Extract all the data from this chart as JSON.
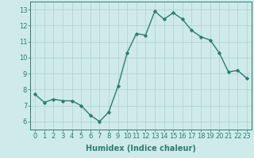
{
  "x": [
    0,
    1,
    2,
    3,
    4,
    5,
    6,
    7,
    8,
    9,
    10,
    11,
    12,
    13,
    14,
    15,
    16,
    17,
    18,
    19,
    20,
    21,
    22,
    23
  ],
  "y": [
    7.7,
    7.2,
    7.4,
    7.3,
    7.3,
    7.0,
    6.4,
    6.0,
    6.6,
    8.2,
    10.3,
    11.5,
    11.4,
    12.9,
    12.4,
    12.8,
    12.4,
    11.7,
    11.3,
    11.1,
    10.3,
    9.1,
    9.2,
    8.7
  ],
  "line_color": "#2d7d6e",
  "marker": "D",
  "marker_size": 1.8,
  "line_width": 1.0,
  "bg_color": "#ceeaea",
  "grid_color": "#b0d0d0",
  "xlabel": "Humidex (Indice chaleur)",
  "xlabel_fontsize": 7,
  "tick_fontsize": 6,
  "ylim": [
    5.5,
    13.5
  ],
  "xlim": [
    -0.5,
    23.5
  ],
  "yticks": [
    6,
    7,
    8,
    9,
    10,
    11,
    12,
    13
  ],
  "xticks": [
    0,
    1,
    2,
    3,
    4,
    5,
    6,
    7,
    8,
    9,
    10,
    11,
    12,
    13,
    14,
    15,
    16,
    17,
    18,
    19,
    20,
    21,
    22,
    23
  ]
}
